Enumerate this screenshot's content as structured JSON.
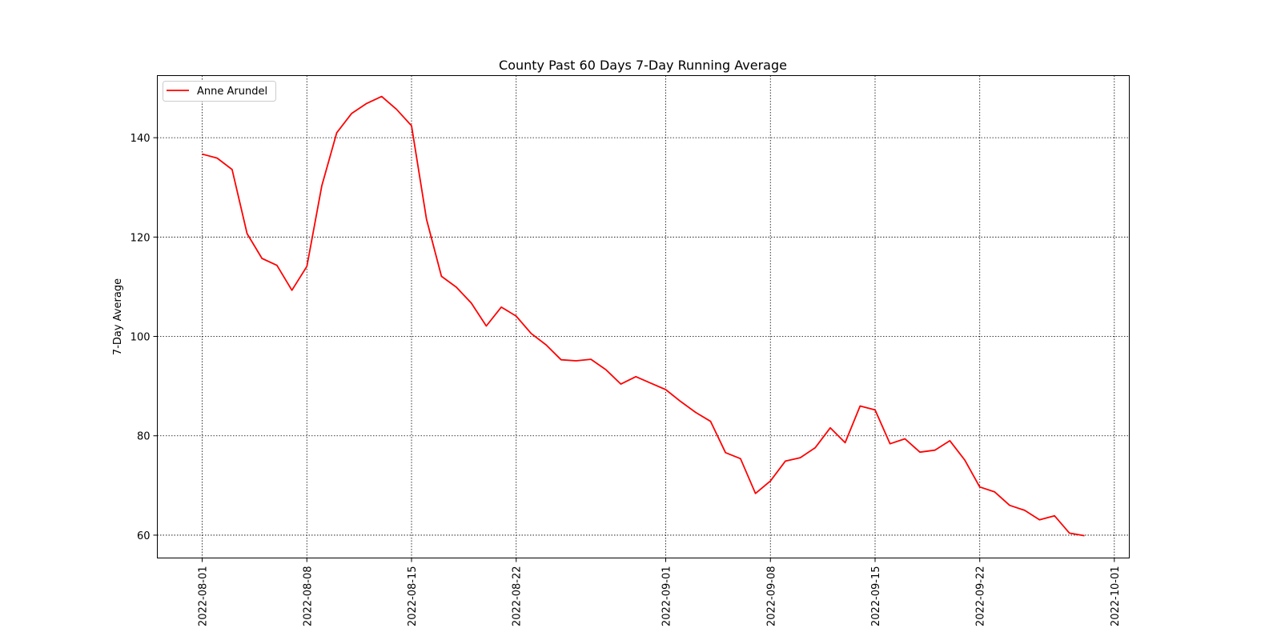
{
  "chart_data": {
    "type": "line",
    "title": "County Past 60 Days 7-Day Running Average",
    "xlabel": "",
    "ylabel": "7-Day Average",
    "x_range": [
      "2022-07-29",
      "2022-10-02"
    ],
    "ylim": [
      55.4,
      152.5
    ],
    "grid": true,
    "grid_style": "dotted",
    "legend_position": "top-left",
    "x_ticks": [
      "2022-08-01",
      "2022-08-08",
      "2022-08-15",
      "2022-08-22",
      "2022-09-01",
      "2022-09-08",
      "2022-09-15",
      "2022-09-22",
      "2022-10-01"
    ],
    "y_ticks": [
      60,
      80,
      100,
      120,
      140
    ],
    "series": [
      {
        "name": "Anne Arundel",
        "color": "#ff0000",
        "x": [
          "2022-08-01",
          "2022-08-02",
          "2022-08-03",
          "2022-08-04",
          "2022-08-05",
          "2022-08-06",
          "2022-08-07",
          "2022-08-08",
          "2022-08-09",
          "2022-08-10",
          "2022-08-11",
          "2022-08-12",
          "2022-08-13",
          "2022-08-14",
          "2022-08-15",
          "2022-08-16",
          "2022-08-17",
          "2022-08-18",
          "2022-08-19",
          "2022-08-20",
          "2022-08-21",
          "2022-08-22",
          "2022-08-23",
          "2022-08-24",
          "2022-08-25",
          "2022-08-26",
          "2022-08-27",
          "2022-08-28",
          "2022-08-29",
          "2022-08-30",
          "2022-08-31",
          "2022-09-01",
          "2022-09-02",
          "2022-09-03",
          "2022-09-04",
          "2022-09-05",
          "2022-09-06",
          "2022-09-07",
          "2022-09-08",
          "2022-09-09",
          "2022-09-10",
          "2022-09-11",
          "2022-09-12",
          "2022-09-13",
          "2022-09-14",
          "2022-09-15",
          "2022-09-16",
          "2022-09-17",
          "2022-09-18",
          "2022-09-19",
          "2022-09-20",
          "2022-09-21",
          "2022-09-22",
          "2022-09-23",
          "2022-09-24",
          "2022-09-25",
          "2022-09-26",
          "2022-09-27",
          "2022-09-28",
          "2022-09-29"
        ],
        "values": [
          136.7,
          135.9,
          133.6,
          120.7,
          115.7,
          114.3,
          109.3,
          114.1,
          130.3,
          141.0,
          144.9,
          146.9,
          148.3,
          145.7,
          142.4,
          123.6,
          112.1,
          109.9,
          106.7,
          102.1,
          105.9,
          104.1,
          100.6,
          98.3,
          95.3,
          95.1,
          95.4,
          93.3,
          90.4,
          91.9,
          90.6,
          89.3,
          86.9,
          84.7,
          82.9,
          76.6,
          75.4,
          68.4,
          70.9,
          74.9,
          75.6,
          77.6,
          81.6,
          78.6,
          86.0,
          85.2,
          78.4,
          79.4,
          76.7,
          77.1,
          79.0,
          75.1,
          69.7,
          68.7,
          66.0,
          65.0,
          63.1,
          63.9,
          60.4,
          59.9
        ]
      }
    ]
  }
}
